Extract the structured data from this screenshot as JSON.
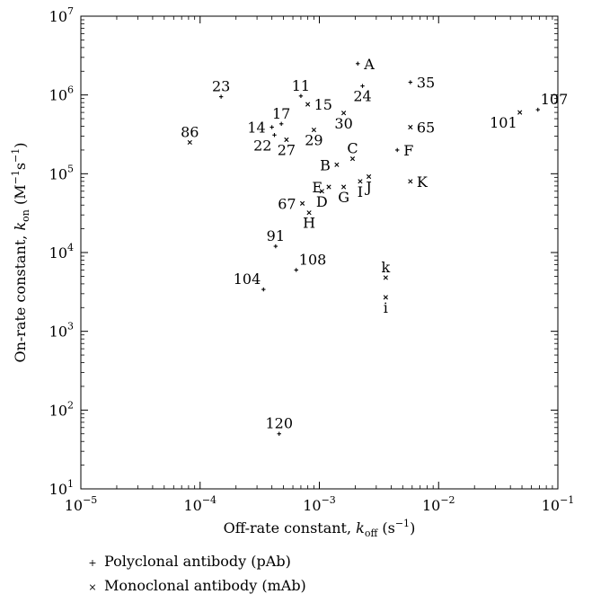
{
  "chart_data": {
    "type": "scatter",
    "title": "",
    "xlabel": {
      "prefix": "Off-rate constant, ",
      "var": "k",
      "sub": "off",
      "suffix_pre": " (s",
      "suffix_exp": "−1",
      "suffix_post": ")"
    },
    "ylabel": {
      "prefix": "On-rate constant, ",
      "var": "k",
      "sub": "on",
      "suffix_pre": " (M",
      "exp1": "−1",
      "mid": "s",
      "exp2": "−1",
      "suffix_post": ")"
    },
    "x_scale": "log",
    "y_scale": "log",
    "xlim": [
      1e-05,
      0.1
    ],
    "ylim": [
      10,
      10000000
    ],
    "x_ticks": [
      {
        "value": 1e-05,
        "base": "10",
        "exp": "−5"
      },
      {
        "value": 0.0001,
        "base": "10",
        "exp": "−4"
      },
      {
        "value": 0.001,
        "base": "10",
        "exp": "−3"
      },
      {
        "value": 0.01,
        "base": "10",
        "exp": "−2"
      },
      {
        "value": 0.1,
        "base": "10",
        "exp": "−1"
      }
    ],
    "y_ticks": [
      {
        "value": 10,
        "base": "10",
        "exp": "1"
      },
      {
        "value": 100,
        "base": "10",
        "exp": "2"
      },
      {
        "value": 1000,
        "base": "10",
        "exp": "3"
      },
      {
        "value": 10000,
        "base": "10",
        "exp": "4"
      },
      {
        "value": 100000,
        "base": "10",
        "exp": "5"
      },
      {
        "value": 1000000,
        "base": "10",
        "exp": "6"
      },
      {
        "value": 10000000,
        "base": "10",
        "exp": "7"
      }
    ],
    "grid": false,
    "legend_position": "bottom-left",
    "series": [
      {
        "name": "Polyclonal antibody (pAb)",
        "marker": "+",
        "points": [
          {
            "label": "23",
            "x": 0.00015,
            "y": 950000,
            "anchor": "n"
          },
          {
            "label": "11",
            "x": 0.0007,
            "y": 970000,
            "anchor": "n"
          },
          {
            "label": "17",
            "x": 0.00048,
            "y": 430000,
            "anchor": "n"
          },
          {
            "label": "14",
            "x": 0.0004,
            "y": 390000,
            "anchor": "w"
          },
          {
            "label": "22",
            "x": 0.00042,
            "y": 310000,
            "anchor": "sw"
          },
          {
            "label": "91",
            "x": 0.00043,
            "y": 12000,
            "anchor": "n"
          },
          {
            "label": "108",
            "x": 0.00064,
            "y": 6000,
            "anchor": "ne"
          },
          {
            "label": "104",
            "x": 0.00034,
            "y": 3400,
            "anchor": "nw"
          },
          {
            "label": "120",
            "x": 0.00046,
            "y": 50,
            "anchor": "n"
          },
          {
            "label": "A",
            "x": 0.0021,
            "y": 2500000,
            "anchor": "e"
          },
          {
            "label": "24",
            "x": 0.0023,
            "y": 1300000,
            "anchor": "s"
          },
          {
            "label": "35",
            "x": 0.0058,
            "y": 1450000,
            "anchor": "e"
          },
          {
            "label": "F",
            "x": 0.0045,
            "y": 200000,
            "anchor": "e"
          },
          {
            "label": "107",
            "x": 0.068,
            "y": 650000,
            "anchor": "ne"
          }
        ]
      },
      {
        "name": "Monoclonal antibody (mAb)",
        "marker": "x",
        "points": [
          {
            "label": "86",
            "x": 8.2e-05,
            "y": 250000,
            "anchor": "n"
          },
          {
            "label": "15",
            "x": 0.0008,
            "y": 760000,
            "anchor": "e"
          },
          {
            "label": "27",
            "x": 0.00053,
            "y": 270000,
            "anchor": "s"
          },
          {
            "label": "29",
            "x": 0.0009,
            "y": 360000,
            "anchor": "s"
          },
          {
            "label": "30",
            "x": 0.0016,
            "y": 590000,
            "anchor": "s"
          },
          {
            "label": "C",
            "x": 0.0019,
            "y": 155000,
            "anchor": "n"
          },
          {
            "label": "B",
            "x": 0.0014,
            "y": 130000,
            "anchor": "w"
          },
          {
            "label": "E",
            "x": 0.0012,
            "y": 68000,
            "anchor": "w"
          },
          {
            "label": "D",
            "x": 0.00105,
            "y": 60000,
            "anchor": "s"
          },
          {
            "label": "G",
            "x": 0.0016,
            "y": 68000,
            "anchor": "s"
          },
          {
            "label": "I",
            "x": 0.0022,
            "y": 80000,
            "anchor": "s"
          },
          {
            "label": "J",
            "x": 0.0026,
            "y": 92000,
            "anchor": "s"
          },
          {
            "label": "67",
            "x": 0.00072,
            "y": 42000,
            "anchor": "w"
          },
          {
            "label": "H",
            "x": 0.00082,
            "y": 32000,
            "anchor": "s"
          },
          {
            "label": "65",
            "x": 0.0058,
            "y": 390000,
            "anchor": "e"
          },
          {
            "label": "K",
            "x": 0.0058,
            "y": 80000,
            "anchor": "e"
          },
          {
            "label": "k",
            "x": 0.0036,
            "y": 4800,
            "anchor": "n"
          },
          {
            "label": "i",
            "x": 0.0036,
            "y": 2700,
            "anchor": "s"
          },
          {
            "label": "101",
            "x": 0.048,
            "y": 600000,
            "anchor": "sw"
          }
        ]
      }
    ]
  }
}
